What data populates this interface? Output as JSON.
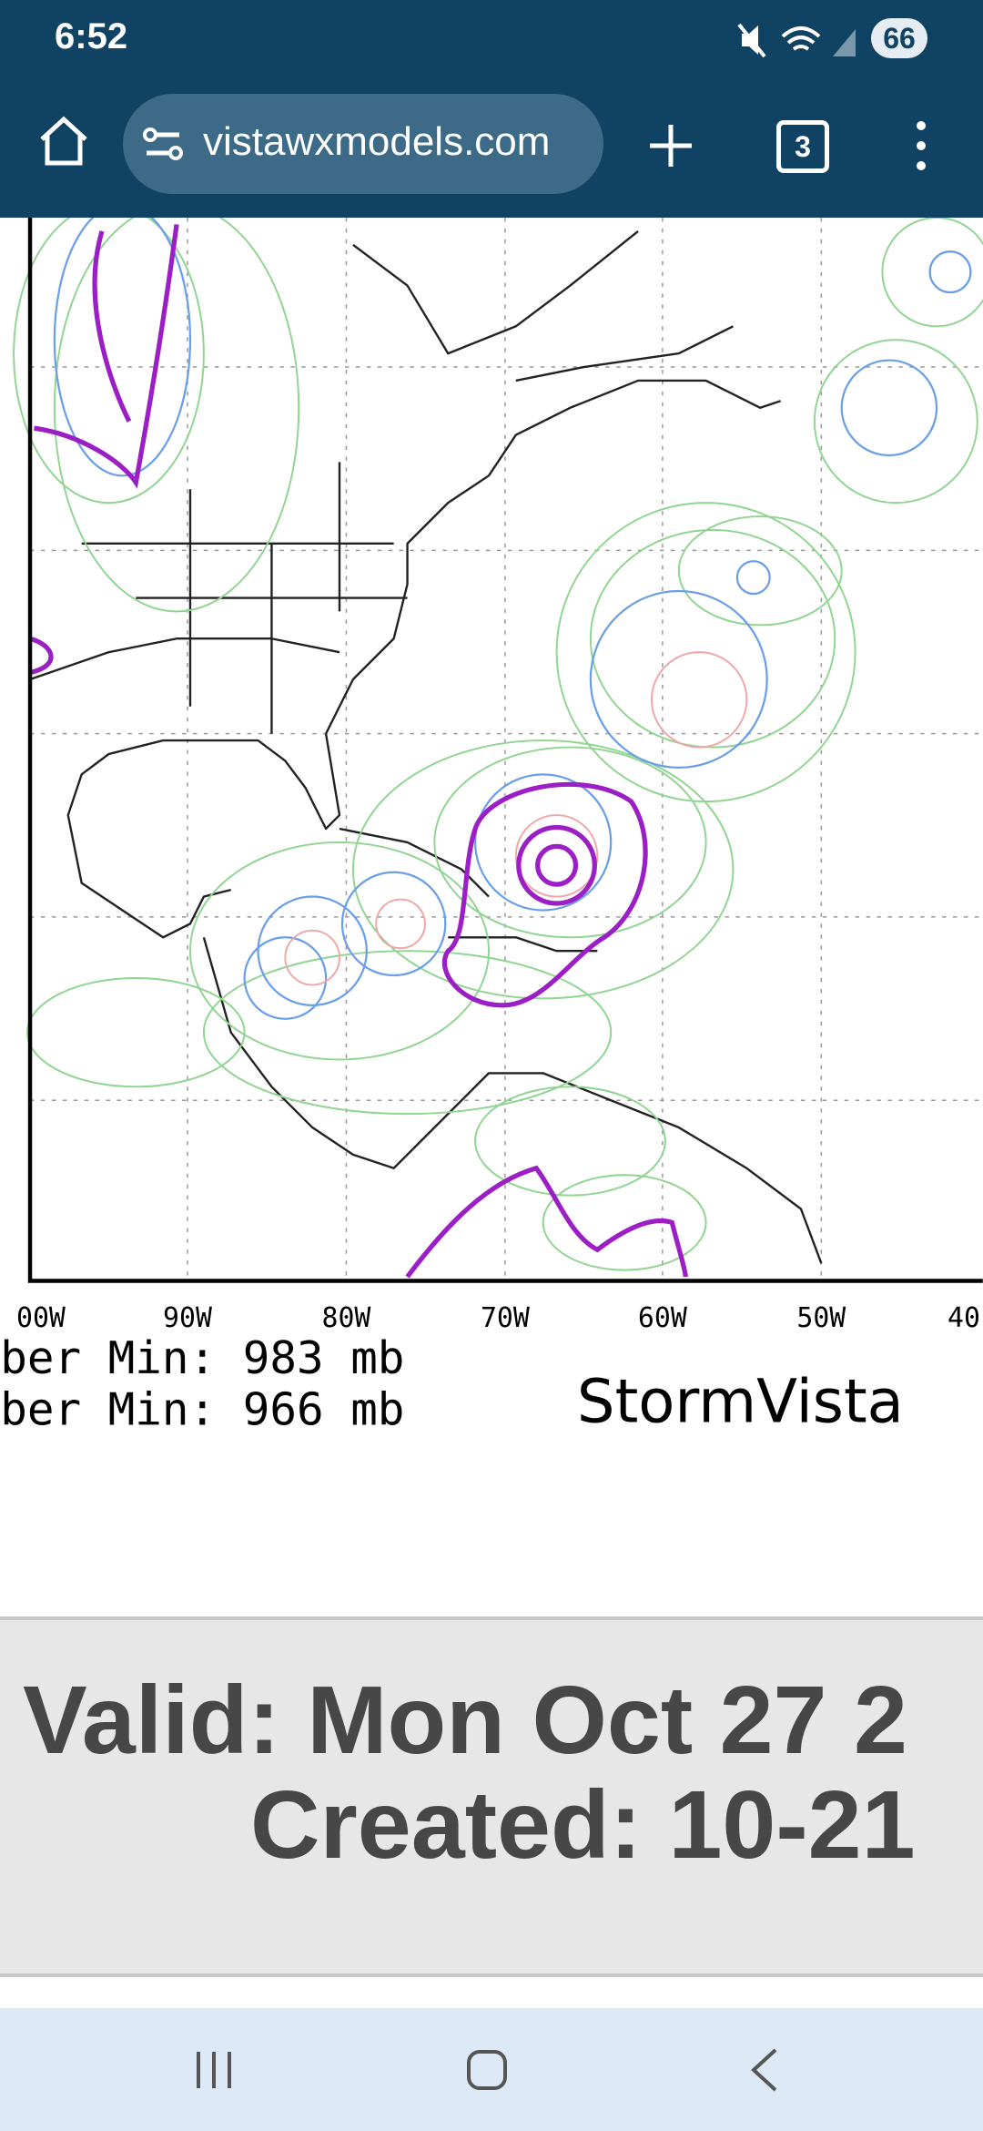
{
  "status_bar": {
    "time": "6:52",
    "battery": "66"
  },
  "browser": {
    "url": "vistawxmodels.com",
    "tab_count": "3"
  },
  "map": {
    "x_axis_labels": [
      "00W",
      "90W",
      "80W",
      "70W",
      "60W",
      "50W",
      "40"
    ],
    "footer_lines": [
      "ber Min: 983 mb",
      "ber Min: 966 mb"
    ],
    "brand": "StormVista"
  },
  "info_panel": {
    "valid": "Valid: Mon Oct 27 2",
    "created": "Created: 10-21"
  }
}
